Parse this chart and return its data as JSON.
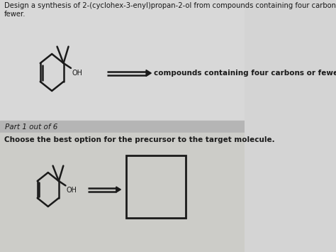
{
  "bg_color": "#d4d4d4",
  "bg_color_bottom": "#c8c8c8",
  "bg_part_bar": "#b8b8b8",
  "line_color": "#1a1a1a",
  "title_text1": "Design a synthesis of 2-(cyclohex-3-enyl)propan-2-ol from compounds containing four carbons or",
  "title_text2": "fewer.",
  "part_text": "Part 1 out of 6",
  "choose_text": "Choose the best option for the precursor to the target molecule.",
  "arrow_text": "compounds containing four carbons or fewer",
  "figsize": [
    4.74,
    3.55
  ],
  "dpi": 100
}
